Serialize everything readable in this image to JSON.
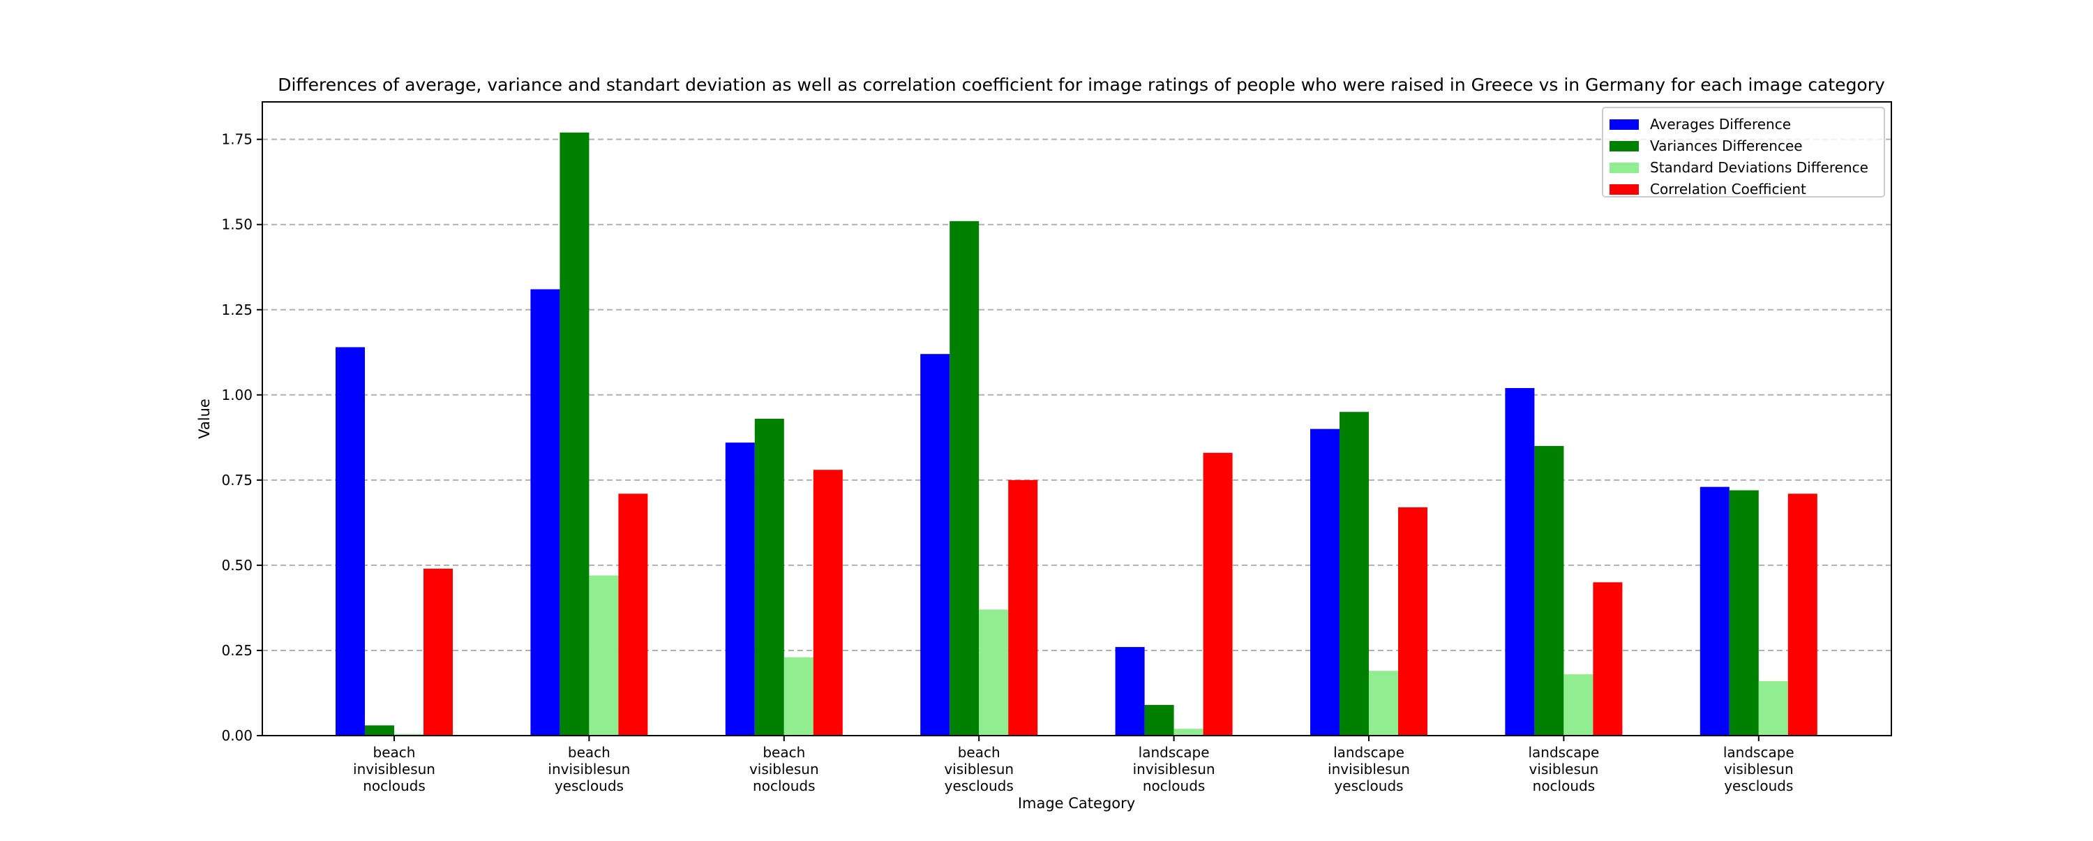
{
  "chart_data": {
    "type": "bar",
    "title": "Differences of average, variance and standart deviation as well as correlation coefficient for image ratings of people who were raised in Greece vs in Germany for each image category",
    "xlabel": "Image Category",
    "ylabel": "Value",
    "ylim": [
      0,
      1.88
    ],
    "yticks": [
      0.0,
      0.25,
      0.5,
      0.75,
      1.0,
      1.25,
      1.5,
      1.75
    ],
    "ytick_labels": [
      "0.00",
      "0.25",
      "0.50",
      "0.75",
      "1.00",
      "1.25",
      "1.50",
      "1.75"
    ],
    "grid": "y-dashed",
    "legend_position": "top-right",
    "categories": [
      [
        "beach",
        "invisiblesun",
        "noclouds"
      ],
      [
        "beach",
        "invisiblesun",
        "yesclouds"
      ],
      [
        "beach",
        "visiblesun",
        "noclouds"
      ],
      [
        "beach",
        "visiblesun",
        "yesclouds"
      ],
      [
        "landscape",
        "invisiblesun",
        "noclouds"
      ],
      [
        "landscape",
        "invisiblesun",
        "yesclouds"
      ],
      [
        "landscape",
        "visiblesun",
        "noclouds"
      ],
      [
        "landscape",
        "visiblesun",
        "yesclouds"
      ]
    ],
    "series": [
      {
        "name": "Averages Difference",
        "color": "#0000ff",
        "values": [
          1.14,
          1.31,
          0.86,
          1.12,
          0.26,
          0.9,
          1.02,
          0.73
        ]
      },
      {
        "name": "Variances Differencee",
        "color": "#008000",
        "values": [
          0.03,
          1.77,
          0.93,
          1.51,
          0.09,
          0.95,
          0.85,
          0.72
        ]
      },
      {
        "name": "Standard Deviations Difference",
        "color": "#90ee90",
        "values": [
          0.005,
          0.47,
          0.23,
          0.37,
          0.02,
          0.19,
          0.18,
          0.16
        ]
      },
      {
        "name": "Correlation Coefficient",
        "color": "#ff0000",
        "values": [
          0.49,
          0.71,
          0.78,
          0.75,
          0.83,
          0.67,
          0.45,
          0.71
        ]
      }
    ]
  }
}
